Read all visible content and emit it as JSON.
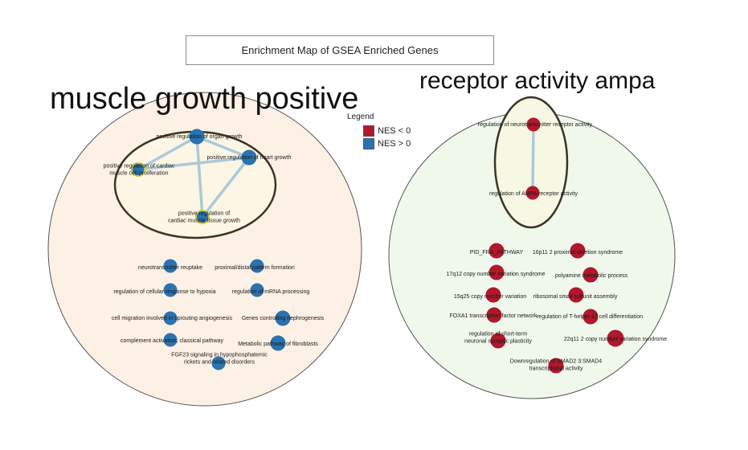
{
  "title": "Enrichment Map of GSEA Enriched Genes",
  "legend": {
    "title": "Legend",
    "items": [
      {
        "label": "NES < 0",
        "color": "#b0182b"
      },
      {
        "label": "NES > 0",
        "color": "#2b72b0"
      }
    ]
  },
  "clusters": [
    {
      "label": "muscle growth positive",
      "fill": "#fdf0e4",
      "inner_fill": "#fdf6e4",
      "edges": [
        [
          0,
          1
        ],
        [
          0,
          2
        ],
        [
          0,
          3
        ],
        [
          1,
          3
        ],
        [
          1,
          2
        ]
      ],
      "nodes": [
        {
          "label": "positive regulation of organ growth",
          "color": "#2b72b0",
          "ring": "#2b72b0"
        },
        {
          "label": "positive regulation of heart growth",
          "color": "#2b72b0",
          "ring": "#2b72b0"
        },
        {
          "label": "positive regulation of cardiac muscle cell proliferation",
          "color": "#2b72b0",
          "ring": "#c8c83c"
        },
        {
          "label": "positive regulation of cardiac muscle tissue growth",
          "color": "#2b72b0",
          "ring": "#c8c83c"
        },
        {
          "label": "neurotransmitter reuptake",
          "color": "#2b72b0",
          "ring": "#2b72b0"
        },
        {
          "label": "proximal/distal pattern formation",
          "color": "#2b72b0",
          "ring": "#2b72b0"
        },
        {
          "label": "regulation of cellular response to hypoxia",
          "color": "#2b72b0",
          "ring": "#2b72b0"
        },
        {
          "label": "regulation of mRNA processing",
          "color": "#2b72b0",
          "ring": "#2b72b0"
        },
        {
          "label": "cell migration involved in sprouting angiogenesis",
          "color": "#2b72b0",
          "ring": "#2b72b0"
        },
        {
          "label": "Genes controlling nephrogenesis",
          "color": "#2b72b0",
          "ring": "#2b72b0"
        },
        {
          "label": "complement activation, classical pathway",
          "color": "#2b72b0",
          "ring": "#2b72b0"
        },
        {
          "label": "Metabolic pathway of fibroblasts",
          "color": "#2b72b0",
          "ring": "#2b72b0"
        },
        {
          "label": "FGF23 signaling in hypophosphatemic rickets and related disorders",
          "color": "#2b72b0",
          "ring": "#2b72b0"
        }
      ]
    },
    {
      "label": "receptor activity ampa",
      "fill": "#f0f8ec",
      "inner_fill": "#f6f8e4",
      "edges": [
        [
          0,
          1
        ]
      ],
      "nodes": [
        {
          "label": "regulation of neurotransmitter receptor activity",
          "color": "#b0182b",
          "ring": "#b0182b"
        },
        {
          "label": "regulation of AMPA receptor activity",
          "color": "#b0182b",
          "ring": "#b0182b"
        },
        {
          "label": "PID_FRA_PATHWAY",
          "color": "#b0182b",
          "ring": "#b0182b"
        },
        {
          "label": "16p11 2 proximal deletion syndrome",
          "color": "#b0182b",
          "ring": "#b0182b"
        },
        {
          "label": "17q12 copy number variation syndrome",
          "color": "#b0182b",
          "ring": "#b0182b"
        },
        {
          "label": "polyamine metabolic process",
          "color": "#b0182b",
          "ring": "#b0182b"
        },
        {
          "label": "15q25 copy number variation",
          "color": "#b0182b",
          "ring": "#b0182b"
        },
        {
          "label": "ribosomal small subunit assembly",
          "color": "#b0182b",
          "ring": "#b0182b"
        },
        {
          "label": "FOXA1 transcription factor network",
          "color": "#b0182b",
          "ring": "#b0182b"
        },
        {
          "label": "regulation of T-helper 17 cell differentiation",
          "color": "#b0182b",
          "ring": "#b0182b"
        },
        {
          "label": "regulation of short-term neuronal synaptic plasticity",
          "color": "#b0182b",
          "ring": "#b0182b"
        },
        {
          "label": "22q11 2 copy number variation syndrome",
          "color": "#b0182b",
          "ring": "#b0182b"
        },
        {
          "label": "Downregulation of SMAD2 3:SMAD4 transcriptional activity",
          "color": "#b0182b",
          "ring": "#b0182b"
        }
      ]
    }
  ]
}
